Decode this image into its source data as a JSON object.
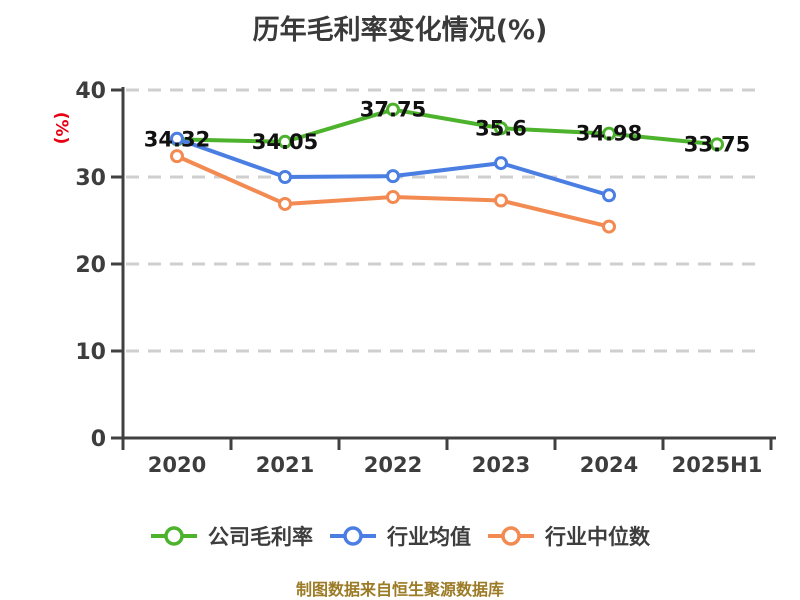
{
  "title": "历年毛利率变化情况(%)",
  "y_axis_name": "(%)",
  "footer_note": "制图数据来自恒生聚源数据库",
  "colors": {
    "company": "#4db22c",
    "industry_mean": "#4a7ee3",
    "industry_median": "#f28a52",
    "axis": "#404040",
    "grid": "#cfcfcf",
    "tick_text": "#3d3d3d",
    "title_text": "#3a3a3a",
    "value_label_text": "#111111",
    "y_axis_name_color": "#e60012",
    "footer_text": "#9c7b26"
  },
  "legend": {
    "items": [
      {
        "label": "公司毛利率",
        "color": "#4db22c"
      },
      {
        "label": "行业均值",
        "color": "#4a7ee3"
      },
      {
        "label": "行业中位数",
        "color": "#f28a52"
      }
    ]
  },
  "chart_data": {
    "type": "line",
    "title": "历年毛利率变化情况(%)",
    "categories": [
      "2020",
      "2021",
      "2022",
      "2023",
      "2024",
      "2025H1"
    ],
    "series": [
      {
        "name": "公司毛利率",
        "color": "#4db22c",
        "values": [
          34.32,
          34.05,
          37.75,
          35.6,
          34.98,
          33.75
        ],
        "point_labels": [
          "34.32",
          "34.05",
          "37.75",
          "35.6",
          "34.98",
          "33.75"
        ]
      },
      {
        "name": "行业均值",
        "color": "#4a7ee3",
        "values": [
          34.4,
          30.0,
          30.1,
          31.6,
          27.9,
          null
        ],
        "point_labels": null
      },
      {
        "name": "行业中位数",
        "color": "#f28a52",
        "values": [
          32.4,
          26.9,
          27.7,
          27.3,
          24.3,
          null
        ],
        "point_labels": null
      }
    ],
    "ylabel": "(%)",
    "ylim": [
      0,
      40
    ],
    "y_ticks": [
      0,
      10,
      20,
      30,
      40
    ],
    "grid": "horizontal-dashed",
    "legend_position": "bottom"
  }
}
